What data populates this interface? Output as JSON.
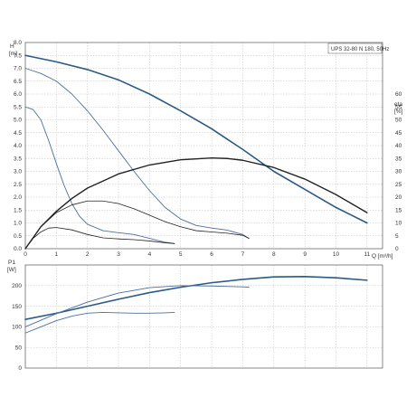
{
  "chart_data": [
    {
      "type": "line",
      "panel": "head-eta",
      "title": "UPS 32-80 N 180, 50Hz",
      "xlabel": "Q [m³/h]",
      "ylabel_left": [
        "H",
        "[m]"
      ],
      "ylabel_right": [
        "eta",
        "[%]"
      ],
      "xlim": [
        0,
        11.5
      ],
      "ylim": [
        0,
        8.0
      ],
      "ylim_right": [
        0,
        80
      ],
      "x_ticks": [
        0,
        1,
        2,
        3,
        4,
        5,
        6,
        7,
        8,
        9,
        10,
        11
      ],
      "y_ticks": [
        0.0,
        0.5,
        1.0,
        1.5,
        2.0,
        2.5,
        3.0,
        3.5,
        4.0,
        4.5,
        5.0,
        5.5,
        6.0,
        6.5,
        7.0,
        7.5,
        8.0
      ],
      "y_ticks_right": [
        0,
        5,
        10,
        15,
        20,
        25,
        30,
        35,
        40,
        45,
        50,
        55,
        60
      ],
      "grid": true,
      "series": [
        {
          "axis": "left",
          "color": "#2b5a86",
          "width": 1.6,
          "x": [
            0,
            1,
            2,
            3,
            4,
            5,
            6,
            7,
            8,
            9,
            10,
            11
          ],
          "y": [
            7.5,
            7.25,
            6.95,
            6.55,
            6.0,
            5.35,
            4.65,
            3.85,
            3.0,
            2.3,
            1.6,
            1.0
          ]
        },
        {
          "axis": "left",
          "color": "#4b6fa0",
          "width": 0.9,
          "x": [
            0,
            0.5,
            1,
            1.5,
            2,
            2.5,
            3,
            3.5,
            4,
            4.5,
            5,
            5.5,
            6,
            6.5,
            7,
            7.2
          ],
          "y": [
            7.0,
            6.8,
            6.5,
            6.0,
            5.35,
            4.6,
            3.8,
            3.0,
            2.25,
            1.6,
            1.15,
            0.9,
            0.8,
            0.72,
            0.55,
            0.4
          ]
        },
        {
          "axis": "left",
          "color": "#4b6fa0",
          "width": 0.9,
          "x": [
            0,
            0.25,
            0.5,
            0.75,
            1,
            1.25,
            1.5,
            1.75,
            2,
            2.5,
            3,
            3.5,
            4,
            4.5,
            4.8
          ],
          "y": [
            5.5,
            5.4,
            5.0,
            4.2,
            3.3,
            2.45,
            1.75,
            1.25,
            0.95,
            0.7,
            0.62,
            0.55,
            0.4,
            0.25,
            0.2
          ]
        },
        {
          "axis": "right",
          "color": "#222222",
          "width": 1.4,
          "x": [
            0,
            0.5,
            1,
            1.5,
            2,
            3,
            4,
            5,
            6,
            6.5,
            7,
            8,
            9,
            10,
            11
          ],
          "y": [
            0,
            8.5,
            14.5,
            19.5,
            23.5,
            29,
            32.5,
            34.5,
            35.2,
            35.0,
            34.3,
            31.5,
            27,
            21,
            14
          ]
        },
        {
          "axis": "right",
          "color": "#222222",
          "width": 0.8,
          "x": [
            0,
            0.5,
            1,
            1.5,
            2,
            2.5,
            3,
            3.5,
            4,
            4.5,
            5,
            5.5,
            6,
            6.5,
            7,
            7.2
          ],
          "y": [
            0,
            8.5,
            14,
            17,
            18.5,
            18.5,
            17.5,
            15.5,
            13,
            10.5,
            8.5,
            7,
            6.5,
            6,
            5.2,
            4
          ]
        },
        {
          "axis": "right",
          "color": "#222222",
          "width": 0.8,
          "x": [
            0,
            0.25,
            0.5,
            0.75,
            1,
            1.5,
            2,
            2.5,
            3,
            3.5,
            4,
            4.5,
            4.8
          ],
          "y": [
            0,
            4,
            6.5,
            8,
            8.2,
            7.3,
            5.5,
            4.2,
            3.8,
            3.5,
            3.0,
            2.3,
            2.0
          ]
        }
      ]
    },
    {
      "type": "line",
      "panel": "power",
      "ylabel_left": [
        "P1",
        "[W]"
      ],
      "xlim": [
        0,
        11.5
      ],
      "ylim": [
        0,
        250
      ],
      "y_ticks": [
        0,
        50,
        100,
        150,
        200
      ],
      "x_ticks": [
        0,
        1,
        2,
        3,
        4,
        5,
        6,
        7,
        8,
        9,
        10,
        11
      ],
      "grid": true,
      "series": [
        {
          "color": "#2b5a86",
          "width": 1.6,
          "x": [
            0,
            1,
            2,
            3,
            4,
            5,
            6,
            7,
            8,
            9,
            10,
            11
          ],
          "y": [
            118,
            133,
            150,
            167,
            183,
            196,
            207,
            215,
            221,
            222,
            219,
            213
          ]
        },
        {
          "color": "#4b6fa0",
          "width": 0.9,
          "x": [
            0,
            1,
            2,
            3,
            4,
            5,
            6,
            7,
            7.2
          ],
          "y": [
            100,
            132,
            160,
            182,
            195,
            200,
            199,
            197,
            196
          ]
        },
        {
          "color": "#4b6fa0",
          "width": 0.9,
          "x": [
            0,
            0.5,
            1,
            1.5,
            2,
            2.5,
            3,
            3.5,
            4,
            4.5,
            4.8
          ],
          "y": [
            85,
            100,
            115,
            126,
            133,
            135,
            134,
            133,
            133,
            134,
            135
          ]
        }
      ]
    }
  ]
}
